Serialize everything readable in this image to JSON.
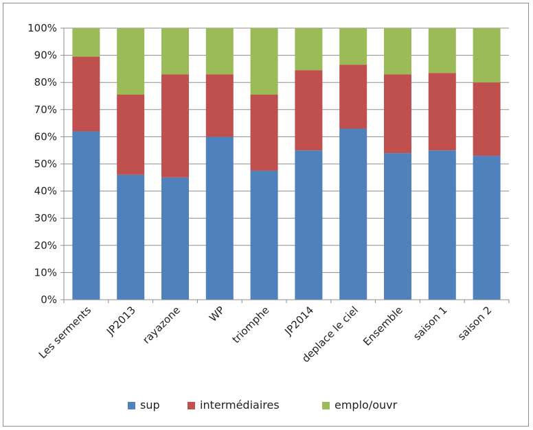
{
  "chart_data": {
    "type": "bar",
    "stacked": true,
    "percent": true,
    "categories": [
      "Les serments",
      "JP2013",
      "rayazone",
      "WP",
      "triomphe",
      "JP2014",
      "deplace le ciel",
      "Ensemble",
      "saison 1",
      "saison 2"
    ],
    "series": [
      {
        "name": "sup",
        "color": "#4f81bd",
        "values": [
          62,
          46,
          45,
          60,
          47.5,
          55,
          63,
          54,
          55,
          53
        ]
      },
      {
        "name": "intermédiaires",
        "color": "#c0504d",
        "values": [
          27.5,
          29.5,
          38,
          23,
          28,
          29.5,
          23.5,
          29,
          28.5,
          27
        ]
      },
      {
        "name": "emplo/ouvr",
        "color": "#9bbb59",
        "values": [
          10.5,
          24.5,
          17,
          17,
          24.5,
          15.5,
          13.5,
          17,
          16.5,
          20
        ]
      }
    ],
    "ylim": [
      0,
      100
    ],
    "yticks": [
      "0%",
      "10%",
      "20%",
      "30%",
      "40%",
      "50%",
      "60%",
      "70%",
      "80%",
      "90%",
      "100%"
    ],
    "grid": true,
    "legend": "bottom"
  }
}
